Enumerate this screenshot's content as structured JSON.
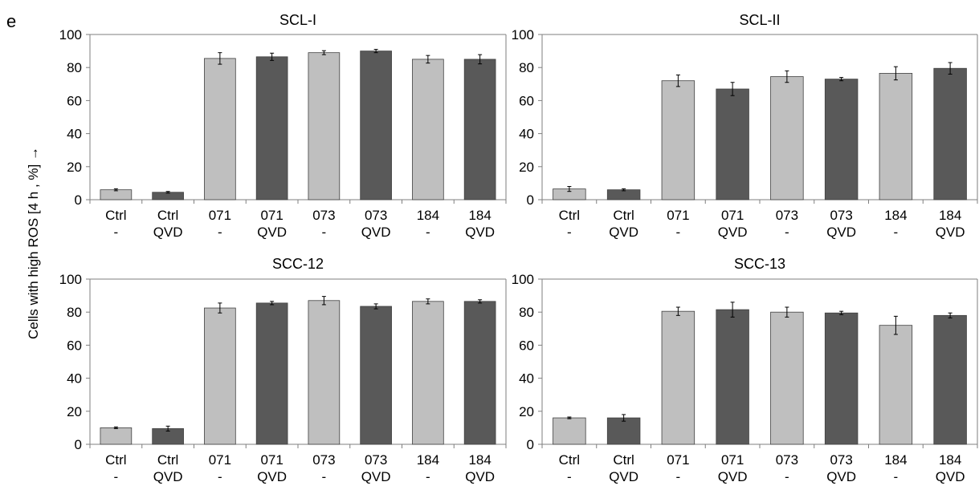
{
  "panel_label": "e",
  "y_axis_title": "Cells with high ROS [4 h , %] →",
  "colors": {
    "light_bar": "#bfbfbf",
    "dark_bar": "#595959",
    "bar_outline": "#404040",
    "axis": "#7f7f7f"
  },
  "chart_data": [
    {
      "type": "bar",
      "title": "SCL-I",
      "categories": [
        "Ctrl -",
        "Ctrl QVD",
        "071 -",
        "071 QVD",
        "073 -",
        "073 QVD",
        "184 -",
        "184 QVD"
      ],
      "category_lines": [
        [
          "Ctrl",
          "-"
        ],
        [
          "Ctrl",
          "QVD"
        ],
        [
          "071",
          "-"
        ],
        [
          "071",
          "QVD"
        ],
        [
          "073",
          "-"
        ],
        [
          "073",
          "QVD"
        ],
        [
          "184",
          "-"
        ],
        [
          "184",
          "QVD"
        ]
      ],
      "values": [
        6,
        4.5,
        85.5,
        86.5,
        89,
        90,
        85,
        85
      ],
      "errors": [
        0.6,
        0.5,
        3.5,
        2.2,
        1.2,
        1,
        2.3,
        2.8
      ],
      "ylim": [
        0,
        100
      ],
      "yticks": [
        0,
        20,
        40,
        60,
        80,
        100
      ],
      "ylabel": "Cells with high ROS [4 h , %] →",
      "grid": false
    },
    {
      "type": "bar",
      "title": "SCL-II",
      "categories": [
        "Ctrl -",
        "Ctrl QVD",
        "071 -",
        "071 QVD",
        "073 -",
        "073 QVD",
        "184 -",
        "184 QVD"
      ],
      "category_lines": [
        [
          "Ctrl",
          "-"
        ],
        [
          "Ctrl",
          "QVD"
        ],
        [
          "071",
          "-"
        ],
        [
          "071",
          "QVD"
        ],
        [
          "073",
          "-"
        ],
        [
          "073",
          "QVD"
        ],
        [
          "184",
          "-"
        ],
        [
          "184",
          "QVD"
        ]
      ],
      "values": [
        6.5,
        6,
        72,
        67,
        74.5,
        73,
        76.5,
        79.5
      ],
      "errors": [
        1.5,
        0.6,
        3.5,
        4,
        3.5,
        1,
        4,
        3.5
      ],
      "ylim": [
        0,
        100
      ],
      "yticks": [
        0,
        20,
        40,
        60,
        80,
        100
      ],
      "grid": false
    },
    {
      "type": "bar",
      "title": "SCC-12",
      "categories": [
        "Ctrl -",
        "Ctrl QVD",
        "071 -",
        "071 QVD",
        "073 -",
        "073 QVD",
        "184 -",
        "184 QVD"
      ],
      "category_lines": [
        [
          "Ctrl",
          "-"
        ],
        [
          "Ctrl",
          "QVD"
        ],
        [
          "071",
          "-"
        ],
        [
          "071",
          "QVD"
        ],
        [
          "073",
          "-"
        ],
        [
          "073",
          "QVD"
        ],
        [
          "184",
          "-"
        ],
        [
          "184",
          "QVD"
        ]
      ],
      "values": [
        10,
        9.5,
        82.5,
        85.5,
        87,
        83.5,
        86.5,
        86.5
      ],
      "errors": [
        0.5,
        1.5,
        3,
        1,
        2.5,
        1.5,
        1.5,
        1
      ],
      "ylim": [
        0,
        100
      ],
      "yticks": [
        0,
        20,
        40,
        60,
        80,
        100
      ],
      "grid": false
    },
    {
      "type": "bar",
      "title": "SCC-13",
      "categories": [
        "Ctrl -",
        "Ctrl QVD",
        "071 -",
        "071 QVD",
        "073 -",
        "073 QVD",
        "184 -",
        "184 QVD"
      ],
      "category_lines": [
        [
          "Ctrl",
          "-"
        ],
        [
          "Ctrl",
          "QVD"
        ],
        [
          "071",
          "-"
        ],
        [
          "071",
          "QVD"
        ],
        [
          "073",
          "-"
        ],
        [
          "073",
          "QVD"
        ],
        [
          "184",
          "-"
        ],
        [
          "184",
          "QVD"
        ]
      ],
      "values": [
        16,
        16,
        80.5,
        81.5,
        80,
        79.5,
        72,
        78
      ],
      "errors": [
        0.5,
        2,
        2.5,
        4.5,
        3,
        1,
        5.5,
        1.5
      ],
      "ylim": [
        0,
        100
      ],
      "yticks": [
        0,
        20,
        40,
        60,
        80,
        100
      ],
      "grid": false
    }
  ]
}
